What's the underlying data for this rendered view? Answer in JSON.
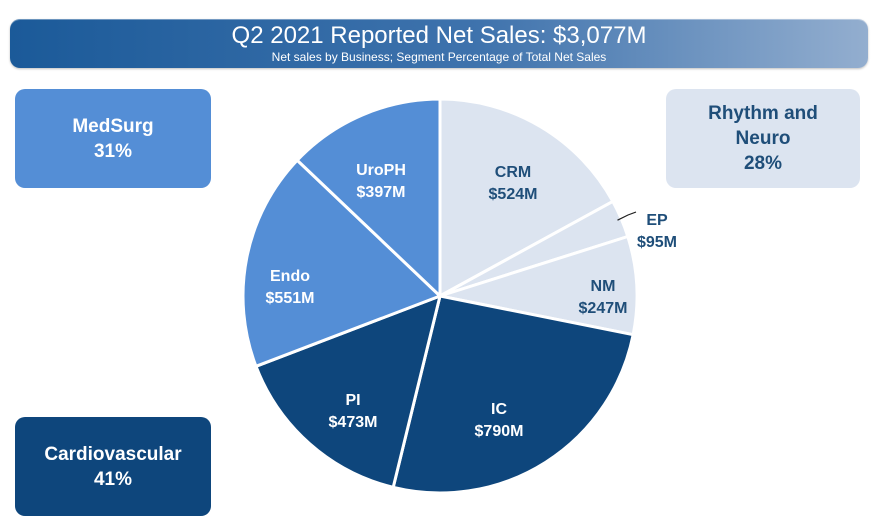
{
  "title": {
    "main": "Q2 2021 Reported Net Sales: $3,077M",
    "sub": "Net sales by Business; Segment Percentage of Total Net Sales"
  },
  "groups": {
    "medsurg": {
      "name": "MedSurg",
      "pct": "31%"
    },
    "rhythm": {
      "name_line1": "Rhythm and",
      "name_line2": "Neuro",
      "pct": "28%"
    },
    "cardio": {
      "name": "Cardiovascular",
      "pct": "41%"
    }
  },
  "colors": {
    "medsurg": "#548ed6",
    "rhythm": "#dce4f0",
    "cardio": "#0e467c",
    "rhythm_text": "#1f4e79",
    "white": "#ffffff"
  },
  "chart_data": {
    "type": "pie",
    "title": "Q2 2021 Reported Net Sales: $3,077M",
    "subtitle": "Net sales by Business; Segment Percentage of Total Net Sales",
    "total": 3077,
    "unit": "$M",
    "start_angle_deg": 0,
    "direction": "clockwise",
    "slices": [
      {
        "name": "CRM",
        "label": "$524M",
        "value": 524,
        "group": "rhythm"
      },
      {
        "name": "EP",
        "label": "$95M",
        "value": 95,
        "group": "rhythm"
      },
      {
        "name": "NM",
        "label": "$247M",
        "value": 247,
        "group": "rhythm"
      },
      {
        "name": "IC",
        "label": "$790M",
        "value": 790,
        "group": "cardio"
      },
      {
        "name": "PI",
        "label": "$473M",
        "value": 473,
        "group": "cardio"
      },
      {
        "name": "Endo",
        "label": "$551M",
        "value": 551,
        "group": "medsurg"
      },
      {
        "name": "UroPH",
        "label": "$397M",
        "value": 397,
        "group": "medsurg"
      }
    ]
  }
}
